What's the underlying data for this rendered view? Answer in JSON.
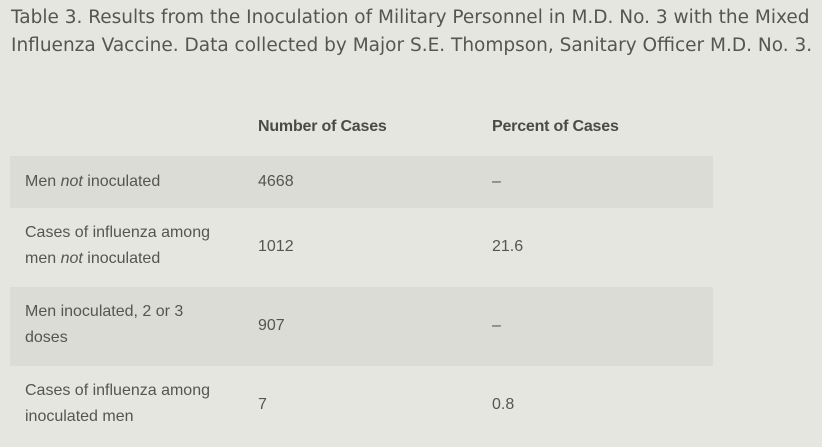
{
  "caption": "Table 3. Results from the Inoculation of Military Personnel in M.D. No. 3 with the Mixed Influenza Vaccine. Data collected by Major S.E. Thompson, Sanitary Officer M.D. No. 3.",
  "table": {
    "headers": [
      "",
      "Number of Cases",
      "Percent of Cases"
    ],
    "rows": [
      {
        "label_pre": "Men ",
        "label_em": "not",
        "label_post": " inoculated",
        "cases": "4668",
        "percent": "–"
      },
      {
        "label_pre": "Cases of influenza among men ",
        "label_em": "not",
        "label_post": " inoculated",
        "cases": "1012",
        "percent": "21.6"
      },
      {
        "label_pre": "Men inoculated, 2 or 3 doses",
        "label_em": "",
        "label_post": "",
        "cases": "907",
        "percent": "–"
      },
      {
        "label_pre": "Cases of influenza among inoculated men",
        "label_em": "",
        "label_post": "",
        "cases": "7",
        "percent": "0.8"
      }
    ]
  }
}
